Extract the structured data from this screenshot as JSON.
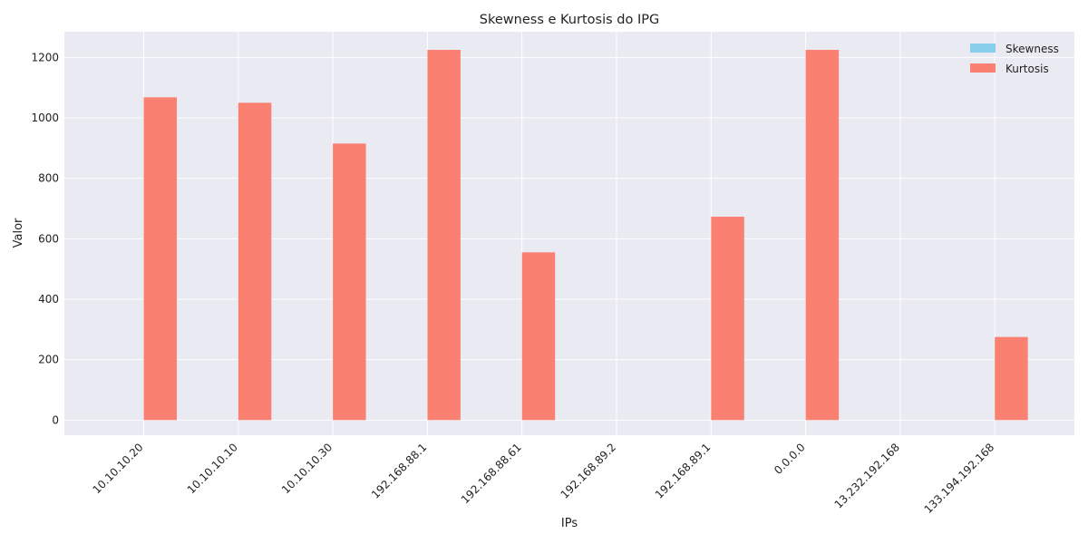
{
  "chart_data": {
    "type": "bar",
    "title": "Skewness e Kurtosis do IPG",
    "xlabel": "IPs",
    "ylabel": "Valor",
    "categories": [
      "10.10.10.20",
      "10.10.10.10",
      "10.10.10.30",
      "192.168.88.1",
      "192.168.88.61",
      "192.168.89.2",
      "192.168.89.1",
      "0.0.0.0",
      "13.232.192.168",
      "133.194.192.168"
    ],
    "series": [
      {
        "name": "Skewness",
        "color": "#87ceeb",
        "values": [
          0,
          0,
          0,
          0,
          0,
          0,
          0,
          0,
          0,
          0
        ]
      },
      {
        "name": "Kurtosis",
        "color": "#fa8072",
        "values": [
          1068,
          1050,
          915,
          1225,
          555,
          0,
          673,
          1225,
          0,
          275
        ]
      }
    ],
    "ylim": [
      -50,
      1285
    ],
    "yticks": [
      0,
      200,
      400,
      600,
      800,
      1000,
      1200
    ],
    "grid": true,
    "legend_position": "top-right",
    "background_color": "#eaeaf2"
  }
}
